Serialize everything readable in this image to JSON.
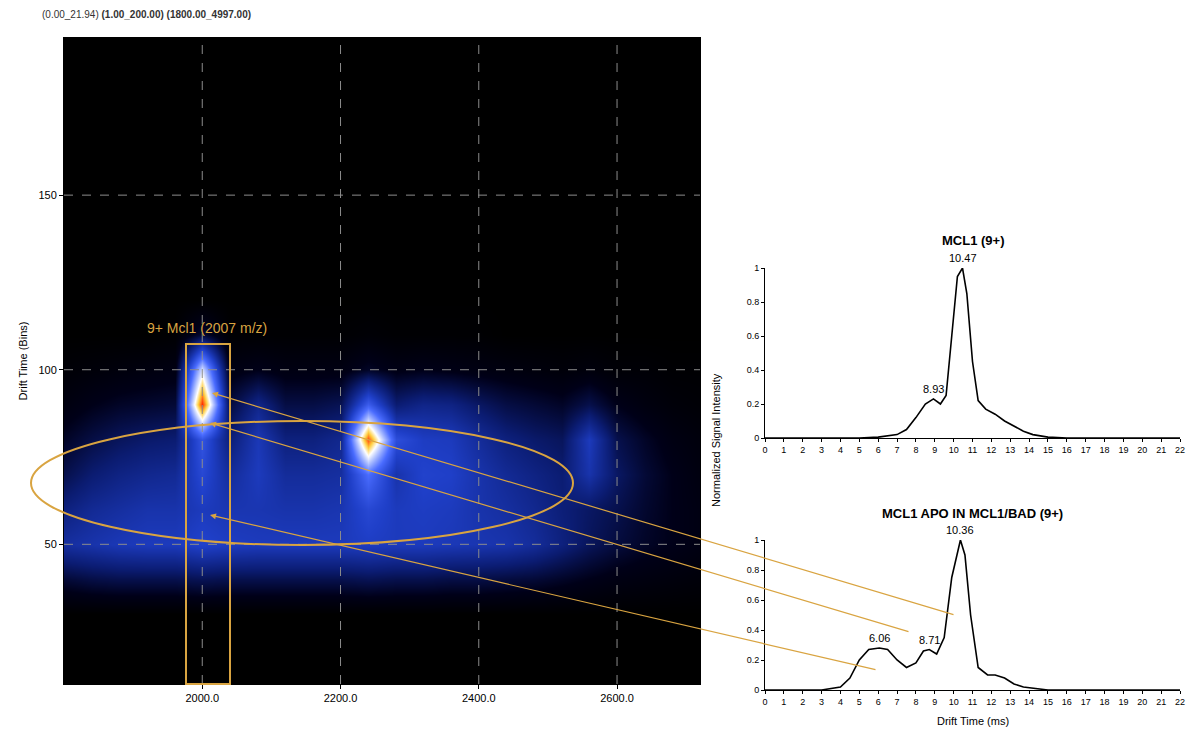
{
  "chart_data": [
    {
      "type": "heatmap",
      "subtitle": "(0.00_21.94) (1.00_200.00) (1800.00_4997.00)",
      "ylabel": "Drift Time (Bins)",
      "x": [
        1800,
        1840,
        1880,
        1920,
        1960,
        2000,
        2040,
        2080,
        2120,
        2160,
        2200,
        2240,
        2280,
        2320,
        2360,
        2400,
        2440,
        2480,
        2520,
        2560,
        2600,
        2640,
        2680,
        2720
      ],
      "y": [
        30,
        40,
        50,
        60,
        70,
        80,
        90,
        100,
        110,
        120
      ],
      "z": [
        [
          0,
          0,
          0,
          0,
          0,
          0,
          0,
          0,
          0,
          0,
          0,
          0,
          0,
          0,
          0,
          0,
          0,
          0,
          0,
          0,
          0,
          0,
          0,
          0
        ],
        [
          0.12,
          0.14,
          0.15,
          0.15,
          0.15,
          0.16,
          0.15,
          0.15,
          0.15,
          0.15,
          0.15,
          0.16,
          0.15,
          0.15,
          0.14,
          0.14,
          0.13,
          0.12,
          0.1,
          0.08,
          0.06,
          0.05,
          0.04,
          0.03
        ],
        [
          0.28,
          0.3,
          0.32,
          0.33,
          0.33,
          0.36,
          0.34,
          0.33,
          0.33,
          0.33,
          0.33,
          0.34,
          0.33,
          0.33,
          0.32,
          0.31,
          0.3,
          0.27,
          0.22,
          0.17,
          0.13,
          0.1,
          0.08,
          0.06
        ],
        [
          0.22,
          0.26,
          0.28,
          0.3,
          0.3,
          0.33,
          0.31,
          0.31,
          0.3,
          0.3,
          0.31,
          0.38,
          0.33,
          0.34,
          0.33,
          0.3,
          0.28,
          0.25,
          0.21,
          0.18,
          0.15,
          0.11,
          0.08,
          0.06
        ],
        [
          0.15,
          0.2,
          0.23,
          0.25,
          0.26,
          0.38,
          0.27,
          0.33,
          0.27,
          0.27,
          0.28,
          0.5,
          0.3,
          0.36,
          0.35,
          0.3,
          0.26,
          0.23,
          0.2,
          0.3,
          0.18,
          0.12,
          0.08,
          0.05
        ],
        [
          0.1,
          0.14,
          0.17,
          0.19,
          0.2,
          0.42,
          0.21,
          0.32,
          0.22,
          0.22,
          0.25,
          0.97,
          0.4,
          0.34,
          0.33,
          0.27,
          0.22,
          0.19,
          0.17,
          0.33,
          0.15,
          0.1,
          0.06,
          0.04
        ],
        [
          0.05,
          0.08,
          0.1,
          0.11,
          0.12,
          1,
          0.13,
          0.24,
          0.14,
          0.14,
          0.16,
          0.45,
          0.2,
          0.24,
          0.23,
          0.18,
          0.14,
          0.12,
          0.1,
          0.15,
          0.08,
          0.05,
          0.03,
          0.02
        ],
        [
          0.02,
          0.03,
          0.04,
          0.05,
          0.06,
          0.7,
          0.06,
          0.08,
          0.06,
          0.06,
          0.06,
          0.1,
          0.07,
          0.08,
          0.07,
          0.06,
          0.05,
          0.04,
          0.03,
          0.04,
          0.02,
          0.02,
          0.01,
          0.01
        ],
        [
          0,
          0,
          0,
          0,
          0.01,
          0.12,
          0.01,
          0.01,
          0.01,
          0.01,
          0.01,
          0.02,
          0.01,
          0.01,
          0.01,
          0.01,
          0,
          0,
          0,
          0,
          0,
          0,
          0,
          0
        ],
        [
          0,
          0,
          0,
          0,
          0,
          0,
          0,
          0,
          0,
          0,
          0,
          0,
          0,
          0,
          0,
          0,
          0,
          0,
          0,
          0,
          0,
          0,
          0,
          0
        ]
      ],
      "xlim": [
        1800,
        2720
      ],
      "ylim": [
        10,
        195
      ],
      "xticks": [
        {
          "value": 2000,
          "label": "2000.0"
        },
        {
          "value": 2200,
          "label": "2200.0"
        },
        {
          "value": 2400,
          "label": "2400.0"
        },
        {
          "value": 2600,
          "label": "2600.0"
        }
      ],
      "yticks": [
        50,
        100,
        150
      ],
      "grid": true,
      "annotations": [
        "9+ Mcl1 (2007 m/z)"
      ]
    },
    {
      "type": "line",
      "title": "MCL1 (9+)",
      "x": [
        0,
        5,
        6,
        7,
        7.5,
        8,
        8.5,
        8.93,
        9.3,
        9.6,
        9.9,
        10.2,
        10.47,
        10.7,
        11,
        11.3,
        11.7,
        12.2,
        12.7,
        13.2,
        13.7,
        14.2,
        15,
        16,
        22
      ],
      "values": [
        0,
        0,
        0.005,
        0.02,
        0.05,
        0.12,
        0.2,
        0.23,
        0.2,
        0.25,
        0.6,
        0.95,
        1,
        0.85,
        0.45,
        0.22,
        0.17,
        0.14,
        0.1,
        0.07,
        0.04,
        0.02,
        0.005,
        0,
        0
      ],
      "color": "#000000",
      "xlim": [
        0,
        22
      ],
      "ylim": [
        0,
        1
      ],
      "xticks": [
        0,
        1,
        2,
        3,
        4,
        5,
        6,
        7,
        8,
        9,
        10,
        11,
        12,
        13,
        14,
        15,
        16,
        17,
        18,
        19,
        20,
        21,
        22
      ],
      "yticks": [
        0,
        0.2,
        0.4,
        0.6,
        0.8,
        1
      ],
      "grid": false,
      "annotations": [
        {
          "text": "10.47",
          "x": 10.47,
          "y": 1
        },
        {
          "text": "8.93",
          "x": 8.93,
          "y": 0.23
        }
      ]
    },
    {
      "type": "line",
      "title": "MCL1 APO IN MCL1/BAD (9+)",
      "xlabel": "Drift Time (ms)",
      "ylabel": "Normalized Signal Intensity",
      "x": [
        0,
        3,
        4,
        4.5,
        5,
        5.5,
        6.06,
        6.5,
        7,
        7.5,
        8,
        8.4,
        8.71,
        9.1,
        9.5,
        9.9,
        10.36,
        10.6,
        10.9,
        11.3,
        11.8,
        12.2,
        12.7,
        13.2,
        13.7,
        14.5,
        15,
        22
      ],
      "values": [
        0,
        0,
        0.02,
        0.08,
        0.2,
        0.27,
        0.28,
        0.27,
        0.2,
        0.15,
        0.18,
        0.26,
        0.27,
        0.24,
        0.35,
        0.75,
        1,
        0.9,
        0.5,
        0.15,
        0.1,
        0.1,
        0.08,
        0.04,
        0.02,
        0.005,
        0,
        0
      ],
      "color": "#000000",
      "xlim": [
        0,
        22
      ],
      "ylim": [
        0,
        1
      ],
      "xticks": [
        0,
        1,
        2,
        3,
        4,
        5,
        6,
        7,
        8,
        9,
        10,
        11,
        12,
        13,
        14,
        15,
        16,
        17,
        18,
        19,
        20,
        21,
        22
      ],
      "yticks": [
        0,
        0.2,
        0.4,
        0.6,
        0.8,
        1
      ],
      "grid": false,
      "annotations": [
        {
          "text": "6.06",
          "x": 6.06,
          "y": 0.28
        },
        {
          "text": "8.71",
          "x": 8.71,
          "y": 0.27
        },
        {
          "text": "10.36",
          "x": 10.36,
          "y": 1
        }
      ]
    }
  ]
}
